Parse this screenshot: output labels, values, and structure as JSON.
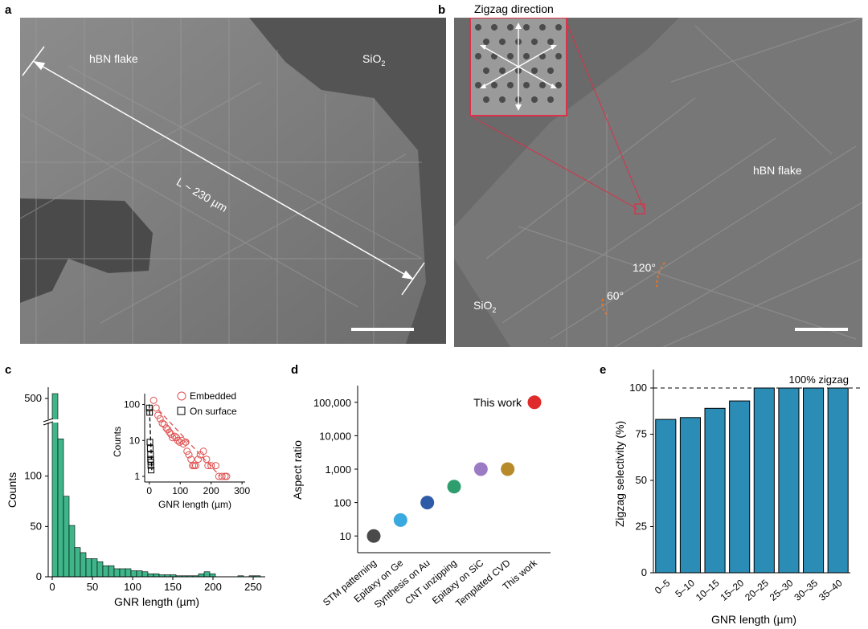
{
  "panels": {
    "a": {
      "letter": "a",
      "labels": {
        "flake": "hBN flake",
        "substrate": "SiO",
        "substrate_sub": "2",
        "length": "L ~ 230 µm"
      }
    },
    "b": {
      "letter": "b",
      "labels": {
        "zigzag_title": "Zigzag direction",
        "flake": "hBN flake",
        "substrate": "SiO",
        "substrate_sub": "2",
        "angle_120": "120°",
        "angle_60": "60°"
      }
    },
    "c": {
      "letter": "c"
    },
    "d": {
      "letter": "d"
    },
    "e": {
      "letter": "e"
    }
  },
  "colors": {
    "hist_fill": "#3fb58a",
    "bar_fill": "#2b8db5",
    "embedded": "#e05050",
    "accent_red": "#d9324a"
  },
  "chart_data": [
    {
      "id": "c",
      "type": "bar",
      "xlabel": "GNR length (µm)",
      "ylabel": "Counts",
      "xlim": [
        -5,
        265
      ],
      "xticks": [
        0,
        50,
        100,
        150,
        200,
        250
      ],
      "yticks_lower": [
        0,
        50,
        100
      ],
      "ytick_upper": 500,
      "axis_break": true,
      "bin_width": 7,
      "bin_starts": [
        0,
        7,
        14,
        21,
        28,
        35,
        42,
        49,
        56,
        63,
        70,
        77,
        84,
        91,
        98,
        105,
        112,
        119,
        126,
        133,
        140,
        147,
        154,
        161,
        168,
        175,
        182,
        189,
        196,
        231,
        245,
        252
      ],
      "values": [
        615,
        137,
        80,
        51,
        29,
        24,
        18,
        18,
        15,
        11,
        11,
        8,
        8,
        8,
        6,
        6,
        5,
        3,
        3,
        2,
        2,
        2,
        1,
        1,
        1,
        1,
        3,
        5,
        3,
        1,
        1,
        1
      ],
      "inset": {
        "type": "scatter",
        "xlabel": "GNR length (µm)",
        "ylabel": "Counts",
        "yscale": "log",
        "xlim": [
          -15,
          310
        ],
        "ylim": [
          0.7,
          200
        ],
        "xticks": [
          0,
          100,
          200,
          300
        ],
        "yticks": [
          1,
          10,
          100
        ],
        "series": [
          {
            "name": "Embedded",
            "marker": "circle",
            "x": [
              14,
              22,
              28,
              35,
              42,
              48,
              55,
              60,
              65,
              70,
              75,
              82,
              88,
              92,
              98,
              105,
              110,
              118,
              122,
              128,
              135,
              140,
              145,
              150,
              158,
              165,
              175,
              185,
              190,
              200,
              215,
              225,
              235,
              245,
              250
            ],
            "y": [
              130,
              80,
              50,
              40,
              30,
              28,
              22,
              20,
              17,
              15,
              12,
              13,
              12,
              10,
              9,
              10,
              8,
              9,
              5,
              4,
              3,
              2,
              2,
              2,
              3,
              4,
              5,
              3,
              2,
              2,
              2,
              1,
              1,
              1,
              1
            ]
          },
          {
            "name": "On surface",
            "marker": "square",
            "x": [
              0,
              1,
              2,
              3,
              4,
              4,
              5,
              5,
              6
            ],
            "y": [
              80,
              60,
              9,
              6,
              4,
              3,
              2.5,
              2,
              1.5
            ]
          }
        ]
      }
    },
    {
      "id": "d",
      "type": "scatter",
      "ylabel": "Aspect ratio",
      "yscale": "log",
      "yticks": [
        "10",
        "100",
        "1,000",
        "10,000",
        "100,000"
      ],
      "categories": [
        "STM patterning",
        "Epitaxy on Ge",
        "Synthesis on Au",
        "CNT unzipping",
        "Epitaxy on SiC",
        "Templated CVD",
        "This work"
      ],
      "values": [
        10,
        30,
        100,
        300,
        1000,
        1000,
        100000
      ],
      "point_colors": [
        "#4a4a4a",
        "#3aa9df",
        "#2e5ba8",
        "#2e9e6e",
        "#9b7bc4",
        "#b78b2a",
        "#e02b2b"
      ],
      "annotation": "This work"
    },
    {
      "id": "e",
      "type": "bar",
      "xlabel": "GNR length (µm)",
      "ylabel": "Zigzag selectivity (%)",
      "ylim": [
        0,
        110
      ],
      "yticks": [
        0,
        25,
        50,
        75,
        100
      ],
      "categories": [
        "0–5",
        "5–10",
        "10–15",
        "15–20",
        "20–25",
        "25–30",
        "30–35",
        "35–40"
      ],
      "values": [
        83,
        84,
        89,
        93,
        100,
        100,
        100,
        100
      ],
      "reference_line": 100,
      "reference_label": "100% zigzag"
    }
  ]
}
